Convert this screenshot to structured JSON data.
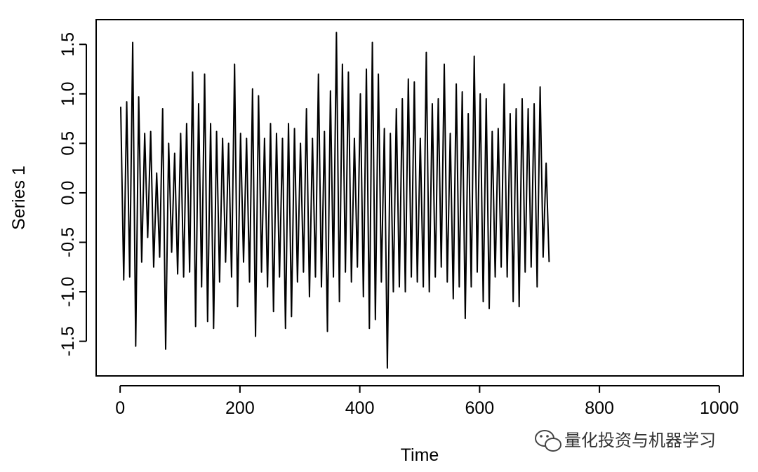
{
  "chart_data": {
    "type": "line",
    "xlabel": "Time",
    "ylabel": "Series 1",
    "xlim": [
      -40,
      1040
    ],
    "ylim": [
      -1.85,
      1.75
    ],
    "x_ticks": [
      0,
      200,
      400,
      600,
      800,
      1000
    ],
    "x_tick_labels": [
      "0",
      "200",
      "400",
      "600",
      "800",
      "1000"
    ],
    "y_ticks": [
      -1.5,
      -1.0,
      -0.5,
      0.0,
      0.5,
      1.0,
      1.5
    ],
    "y_tick_labels": [
      "-1.5",
      "-1.0",
      "-0.5",
      "0.0",
      "0.5",
      "1.0",
      "1.5"
    ],
    "grid": false,
    "line_color": "#000000",
    "series": [
      {
        "x_start": 1,
        "x_step": 5,
        "values": [
          0.87,
          -0.88,
          0.92,
          -0.85,
          1.52,
          -1.55,
          0.97,
          -0.7,
          0.6,
          -0.45,
          0.62,
          -0.75,
          0.2,
          -0.65,
          0.85,
          -1.58,
          0.5,
          -0.6,
          0.4,
          -0.82,
          0.6,
          -0.85,
          0.7,
          -0.8,
          1.22,
          -1.35,
          0.9,
          -0.95,
          1.2,
          -1.3,
          0.7,
          -1.37,
          0.62,
          -0.9,
          0.55,
          -0.7,
          0.5,
          -0.85,
          1.3,
          -1.15,
          0.6,
          -0.7,
          0.55,
          -0.9,
          1.05,
          -1.45,
          0.98,
          -0.8,
          0.55,
          -0.95,
          0.7,
          -1.2,
          0.6,
          -0.85,
          0.55,
          -1.37,
          0.7,
          -1.25,
          0.65,
          -0.9,
          0.5,
          -0.8,
          0.85,
          -1.05,
          0.55,
          -0.85,
          1.2,
          -0.95,
          0.62,
          -1.4,
          1.03,
          -0.85,
          1.62,
          -1.1,
          1.3,
          -0.8,
          1.22,
          -0.9,
          0.55,
          -0.75,
          1.0,
          -1.05,
          1.25,
          -1.37,
          1.52,
          -1.28,
          1.2,
          -0.9,
          0.65,
          -1.77,
          0.6,
          -1.0,
          0.85,
          -0.95,
          0.95,
          -1.0,
          1.15,
          -0.85,
          1.12,
          -0.9,
          0.55,
          -0.95,
          1.42,
          -1.0,
          0.9,
          -0.85,
          0.95,
          -0.75,
          1.3,
          -0.9,
          0.6,
          -1.07,
          1.1,
          -0.95,
          1.02,
          -1.27,
          0.8,
          -0.95,
          1.38,
          -0.8,
          1.0,
          -1.1,
          0.95,
          -1.17,
          0.62,
          -0.85,
          0.65,
          -0.75,
          1.1,
          -0.85,
          0.8,
          -1.1,
          0.85,
          -1.15,
          0.95,
          -0.8,
          0.85,
          -0.75,
          0.9,
          -0.95,
          1.07,
          -0.65,
          0.3,
          -0.7
        ]
      }
    ]
  },
  "watermark": {
    "icon": "wechat-icon",
    "text": "量化投资与机器学习"
  }
}
